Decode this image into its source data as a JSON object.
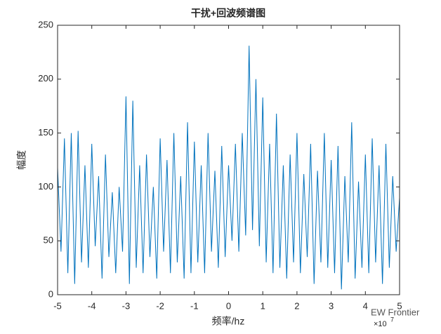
{
  "chart_data": {
    "type": "line",
    "title": "干扰+回波频谱图",
    "xlabel": "频率/hz",
    "ylabel": "幅度",
    "x_multiplier": {
      "base": "×10",
      "exponent": "7"
    },
    "watermark": "EW Frontier",
    "color": "#0072bd",
    "x": [
      -5,
      -4.9,
      -4.8,
      -4.7,
      -4.6,
      -4.5,
      -4.4,
      -4.3,
      -4.2,
      -4.1,
      -4,
      -3.9,
      -3.8,
      -3.7,
      -3.6,
      -3.5,
      -3.4,
      -3.3,
      -3.2,
      -3.1,
      -3,
      -2.9,
      -2.8,
      -2.7,
      -2.6,
      -2.5,
      -2.4,
      -2.3,
      -2.2,
      -2.1,
      -2,
      -1.9,
      -1.8,
      -1.7,
      -1.6,
      -1.5,
      -1.4,
      -1.3,
      -1.2,
      -1.1,
      -1,
      -0.9,
      -0.8,
      -0.7,
      -0.6,
      -0.5,
      -0.4,
      -0.3,
      -0.2,
      -0.1,
      0,
      0.1,
      0.2,
      0.3,
      0.4,
      0.5,
      0.6,
      0.7,
      0.8,
      0.9,
      1,
      1.1,
      1.2,
      1.3,
      1.4,
      1.5,
      1.6,
      1.7,
      1.8,
      1.9,
      2,
      2.1,
      2.2,
      2.3,
      2.4,
      2.5,
      2.6,
      2.7,
      2.8,
      2.9,
      3,
      3.1,
      3.2,
      3.3,
      3.4,
      3.5,
      3.6,
      3.7,
      3.8,
      3.9,
      4,
      4.1,
      4.2,
      4.3,
      4.4,
      4.5,
      4.6,
      4.7,
      4.8,
      4.9,
      5
    ],
    "values": [
      118,
      40,
      145,
      20,
      150,
      10,
      152,
      30,
      120,
      25,
      140,
      45,
      110,
      15,
      130,
      35,
      95,
      20,
      100,
      40,
      184,
      10,
      180,
      25,
      120,
      20,
      130,
      35,
      100,
      15,
      145,
      40,
      125,
      20,
      150,
      30,
      110,
      15,
      160,
      20,
      142,
      30,
      120,
      20,
      150,
      40,
      115,
      25,
      138,
      35,
      120,
      50,
      140,
      40,
      150,
      55,
      231,
      60,
      200,
      45,
      183,
      30,
      140,
      20,
      168,
      25,
      120,
      15,
      130,
      30,
      150,
      20,
      112,
      35,
      140,
      10,
      115,
      30,
      150,
      25,
      125,
      20,
      138,
      5,
      110,
      30,
      160,
      15,
      105,
      25,
      130,
      20,
      145,
      30,
      120,
      10,
      140,
      25,
      110,
      40,
      90
    ],
    "xlim": [
      -5,
      5
    ],
    "xticks": [
      -5,
      -4,
      -3,
      -2,
      -1,
      0,
      1,
      2,
      3,
      4,
      5
    ],
    "ylim": [
      0,
      250
    ],
    "yticks": [
      0,
      50,
      100,
      150,
      200,
      250
    ]
  }
}
